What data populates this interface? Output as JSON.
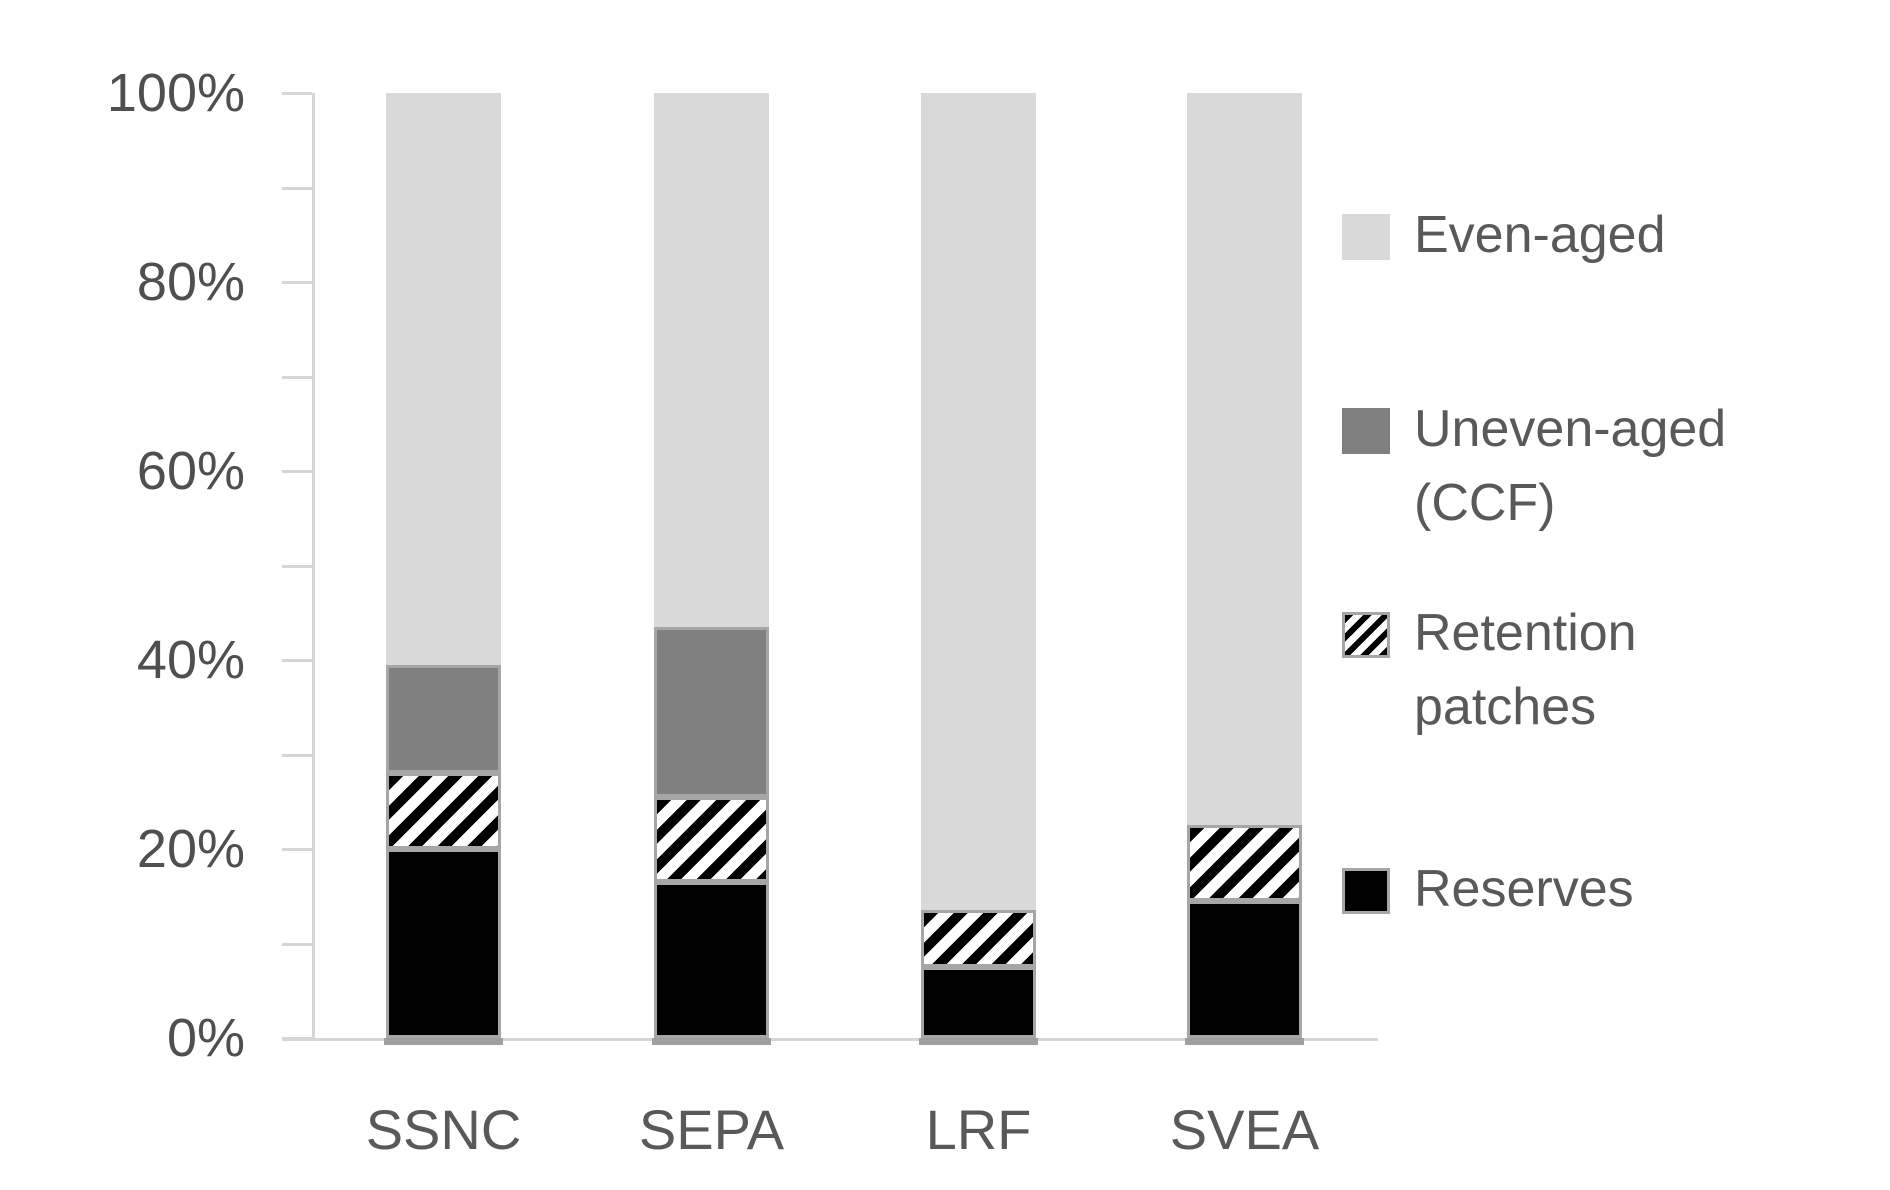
{
  "chart_data": {
    "type": "bar",
    "variant": "stacked-100-percent",
    "title": "",
    "categories": [
      "SSNC",
      "SEPA",
      "LRF",
      "SVEA"
    ],
    "series": [
      {
        "name": "Reserves",
        "key": "reserves",
        "fill": "solid",
        "color": "#000000",
        "values": [
          20,
          16.5,
          7.5,
          14.5
        ]
      },
      {
        "name": "Retention patches",
        "key": "retention-patches",
        "fill": "diagonal-hatch",
        "color": "#000000",
        "background": "#ffffff",
        "values": [
          8,
          9,
          6,
          8
        ]
      },
      {
        "name": "Uneven-aged (CCF)",
        "key": "uneven-aged-ccf",
        "fill": "solid",
        "color": "#808080",
        "values": [
          11.5,
          18,
          0,
          0
        ]
      },
      {
        "name": "Even-aged",
        "key": "even-aged",
        "fill": "solid",
        "color": "#d9d9d9",
        "values": [
          60.5,
          56.5,
          86.5,
          77.5
        ]
      }
    ],
    "xlabel": "",
    "ylabel": "",
    "ylim": [
      0,
      100
    ],
    "y_major_ticks": [
      0,
      20,
      40,
      60,
      80,
      100
    ],
    "y_tick_labels": [
      "0%",
      "20%",
      "40%",
      "60%",
      "80%",
      "100%"
    ],
    "y_minor_tick_step": 10,
    "grid": false,
    "legend_position": "right",
    "legend": [
      {
        "series": "Even-aged",
        "key": "even-aged",
        "lines": [
          "Even-aged"
        ]
      },
      {
        "series": "Uneven-aged (CCF)",
        "key": "uneven-aged-ccf",
        "lines": [
          "Uneven-aged",
          "(CCF)"
        ]
      },
      {
        "series": "Retention patches",
        "key": "retention-patches",
        "lines": [
          "Retention",
          "patches"
        ]
      },
      {
        "series": "Reserves",
        "key": "reserves",
        "lines": [
          "Reserves"
        ]
      }
    ],
    "colors": {
      "segment_border": "#a6a6a6",
      "axis_line": "#d6d6d6",
      "tick_line": "#d6d6d6",
      "axis_text": "#4f4f4f",
      "label_text": "#595959",
      "background": "#ffffff"
    }
  }
}
